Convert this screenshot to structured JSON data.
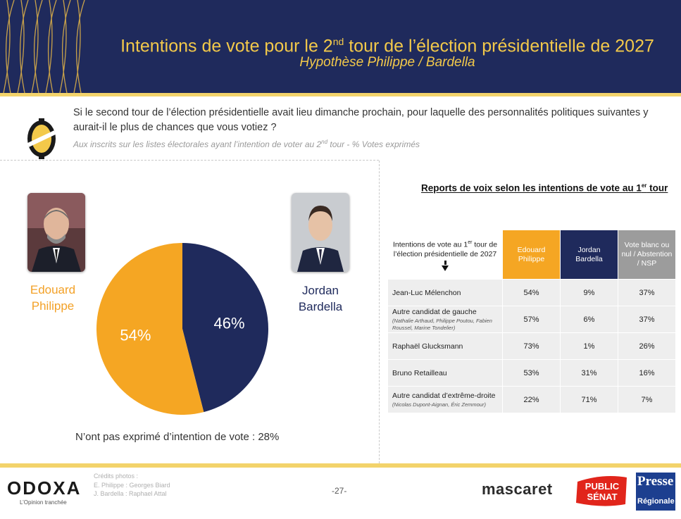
{
  "header": {
    "title_pre": "Intentions de vote pour le 2",
    "title_sup": "nd",
    "title_post": " tour de l’élection présidentielle de 2027",
    "subtitle": "Hypothèse Philippe / Bardella"
  },
  "question": {
    "text": "Si le second tour de l’élection présidentielle avait lieu dimanche prochain, pour laquelle des personnalités politiques suivantes y aurait-il le plus de chances que vous votiez ?",
    "note_pre": "Aux inscrits sur les listes électorales ayant l’intention de voter au 2",
    "note_sup": "nd",
    "note_post": " tour  - % Votes exprimés"
  },
  "candidates": {
    "philippe": {
      "first": "Edouard",
      "last": "Philippe"
    },
    "bardella": {
      "first": "Jordan",
      "last": "Bardella"
    }
  },
  "colors": {
    "philippe": "#f5a623",
    "bardella": "#1f2a5c",
    "blanc": "#9c9c9c",
    "header_bg": "#1f2a5c",
    "accent_gold": "#f3c94a"
  },
  "no_intent": "N’ont pas exprimé d’intention de vote : 28%",
  "report": {
    "title_pre": "Reports de voix selon les intentions de vote au 1",
    "title_sup": "er",
    "title_post": " tour",
    "rowhead_pre": "Intentions de vote au 1",
    "rowhead_sup": "er",
    "rowhead_post": " tour de l’élection présidentielle de 2027"
  },
  "chart_data": [
    {
      "type": "pie",
      "labels": [
        "Edouard Philippe",
        "Jordan Bardella"
      ],
      "values": [
        54,
        46
      ],
      "value_labels": [
        "54%",
        "46%"
      ],
      "colors": [
        "#f5a623",
        "#1f2a5c"
      ]
    },
    {
      "type": "table",
      "columns": [
        "Edouard Philippe",
        "Jordan Bardella",
        "Vote blanc ou nul / Abstention / NSP"
      ],
      "rows": [
        {
          "label": "Jean-Luc Mélenchon",
          "sub": "",
          "values": [
            "54%",
            "9%",
            "37%"
          ]
        },
        {
          "label": "Autre candidat de gauche",
          "sub": "(Nathalie Arthaud, Philippe Poutou, Fabien Roussel, Marine Tondelier)",
          "values": [
            "57%",
            "6%",
            "37%"
          ]
        },
        {
          "label": "Raphaël Glucksmann",
          "sub": "",
          "values": [
            "73%",
            "1%",
            "26%"
          ]
        },
        {
          "label": "Bruno Retailleau",
          "sub": "",
          "values": [
            "53%",
            "31%",
            "16%"
          ]
        },
        {
          "label": "Autre candidat d’extrême-droite",
          "sub": "(Nicolas Dupont-Aignan, Éric Zemmour)",
          "values": [
            "22%",
            "71%",
            "7%"
          ]
        }
      ]
    }
  ],
  "footer": {
    "brand": "ODOXA",
    "tagline": "L’Opinion tranchée",
    "credits": [
      "Crédits photos :",
      "E. Philippe : Georges Biard",
      "J. Bardella : Raphael Attal"
    ],
    "page": "-27-",
    "mascaret": "mascaret",
    "public_senat_1": "PUBLIC",
    "public_senat_2": "SÉNAT",
    "presse_1": "Presse",
    "presse_2": "Régionale"
  }
}
